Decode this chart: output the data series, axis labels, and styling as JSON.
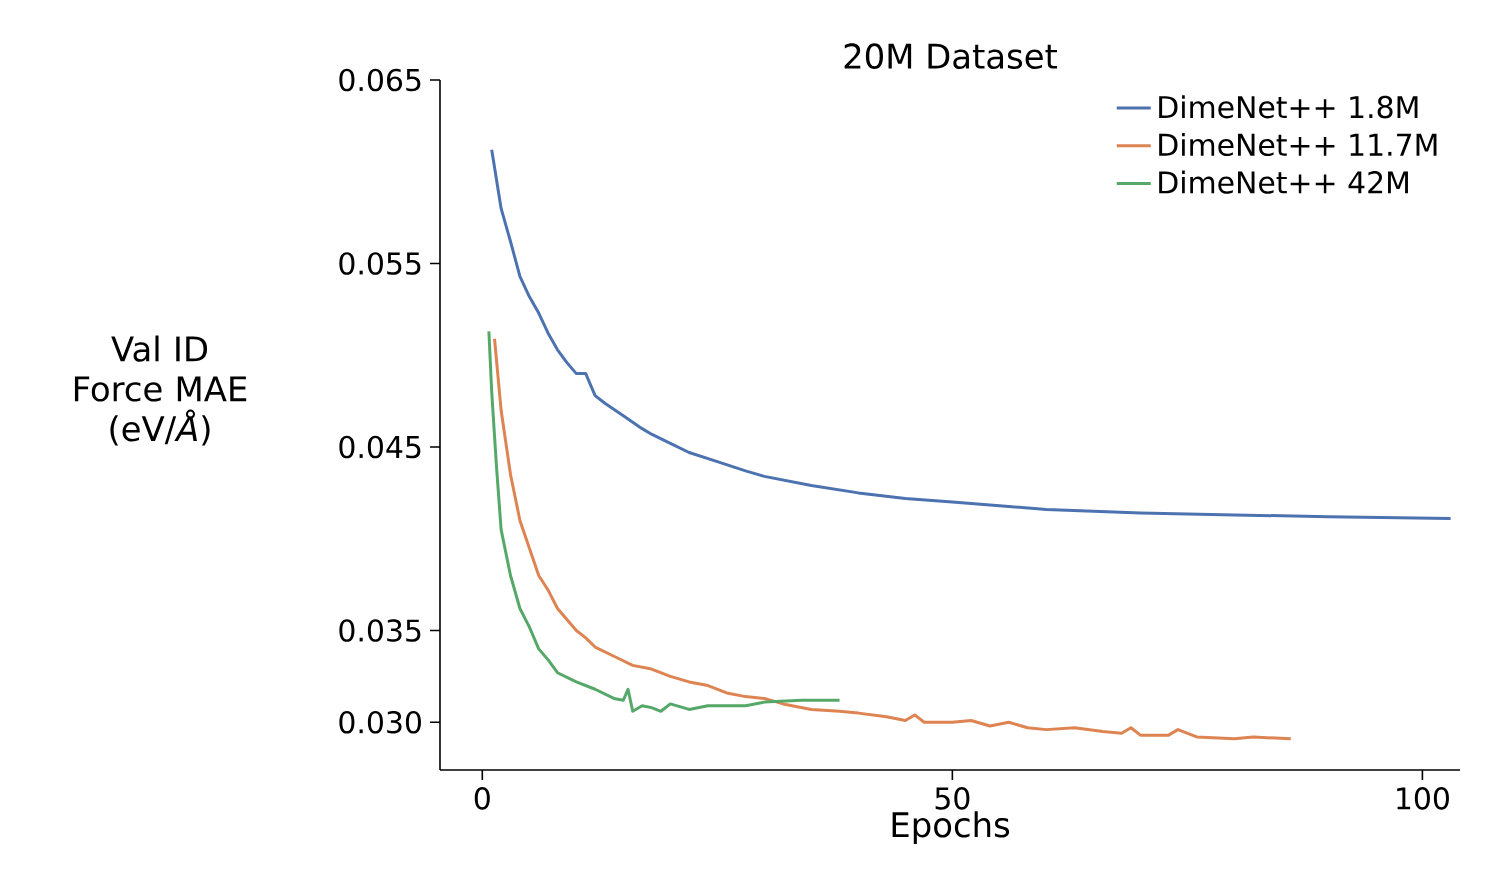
{
  "chart_data": {
    "type": "line",
    "title": "20M Dataset",
    "xlabel": "Epochs",
    "ylabel": "Val ID Force MAE (eV/*Å*)",
    "xlim": [
      -4.5,
      104
    ],
    "xticks": [
      0,
      50,
      100
    ],
    "ylim": [
      0.0274,
      0.065
    ],
    "yticks": [
      {
        "value": 0.03,
        "label": "0.030"
      },
      0.035,
      0.045,
      0.055,
      0.065
    ],
    "legend": "top right",
    "grid": false,
    "marker": "none",
    "line_style": "solid",
    "series": [
      {
        "name": "DimeNet++ 1.8M",
        "color": "#4c72b0",
        "x": [
          1,
          2,
          3,
          4,
          5,
          6,
          7,
          8,
          9,
          10,
          11,
          12,
          13,
          15,
          17,
          18,
          20,
          22,
          25,
          28,
          30,
          35,
          40,
          45,
          50,
          55,
          60,
          65,
          70,
          80,
          90,
          103
        ],
        "values": [
          0.0612,
          0.058,
          0.0562,
          0.0543,
          0.0532,
          0.0523,
          0.0512,
          0.0503,
          0.0496,
          0.049,
          0.049,
          0.0478,
          0.0474,
          0.0467,
          0.046,
          0.0457,
          0.0452,
          0.0447,
          0.0442,
          0.0437,
          0.0434,
          0.0429,
          0.0425,
          0.0422,
          0.042,
          0.0418,
          0.0416,
          0.0415,
          0.0414,
          0.0413,
          0.0412,
          0.0411
        ]
      },
      {
        "name": "DimeNet++ 11.7M",
        "color": "#dd8452",
        "x": [
          1.3,
          2,
          3,
          4,
          5,
          6,
          7,
          8,
          9,
          10,
          11,
          12,
          14,
          16,
          18,
          20,
          22,
          24,
          26,
          28,
          30,
          32,
          35,
          38,
          40,
          43,
          45,
          46,
          47,
          50,
          52,
          54,
          56,
          58,
          60,
          63,
          66,
          68,
          69,
          70,
          73,
          74,
          76,
          80,
          82,
          86
        ],
        "values": [
          0.0509,
          0.047,
          0.0435,
          0.041,
          0.0395,
          0.038,
          0.0372,
          0.0362,
          0.0356,
          0.035,
          0.0346,
          0.0341,
          0.0336,
          0.0331,
          0.0329,
          0.0325,
          0.0322,
          0.032,
          0.0316,
          0.0314,
          0.0313,
          0.031,
          0.0307,
          0.0306,
          0.0305,
          0.0303,
          0.0301,
          0.0304,
          0.03,
          0.03,
          0.0301,
          0.0298,
          0.03,
          0.0297,
          0.0296,
          0.0297,
          0.0295,
          0.0294,
          0.0297,
          0.0293,
          0.0293,
          0.0296,
          0.0292,
          0.0291,
          0.0292,
          0.0291
        ]
      },
      {
        "name": "DimeNet++ 42M",
        "color": "#55a868",
        "x": [
          0.7,
          1,
          1.5,
          2,
          3,
          4,
          5,
          6,
          7,
          8,
          10,
          12,
          14,
          15,
          15.5,
          16,
          17,
          18,
          19,
          20,
          22,
          24,
          26,
          28,
          30,
          34,
          38
        ],
        "values": [
          0.0513,
          0.048,
          0.044,
          0.0405,
          0.038,
          0.0362,
          0.0352,
          0.034,
          0.0334,
          0.0327,
          0.0322,
          0.0318,
          0.0313,
          0.0312,
          0.0318,
          0.0306,
          0.0309,
          0.0308,
          0.0306,
          0.031,
          0.0307,
          0.0309,
          0.0309,
          0.0309,
          0.0311,
          0.0312,
          0.0312
        ]
      }
    ]
  }
}
